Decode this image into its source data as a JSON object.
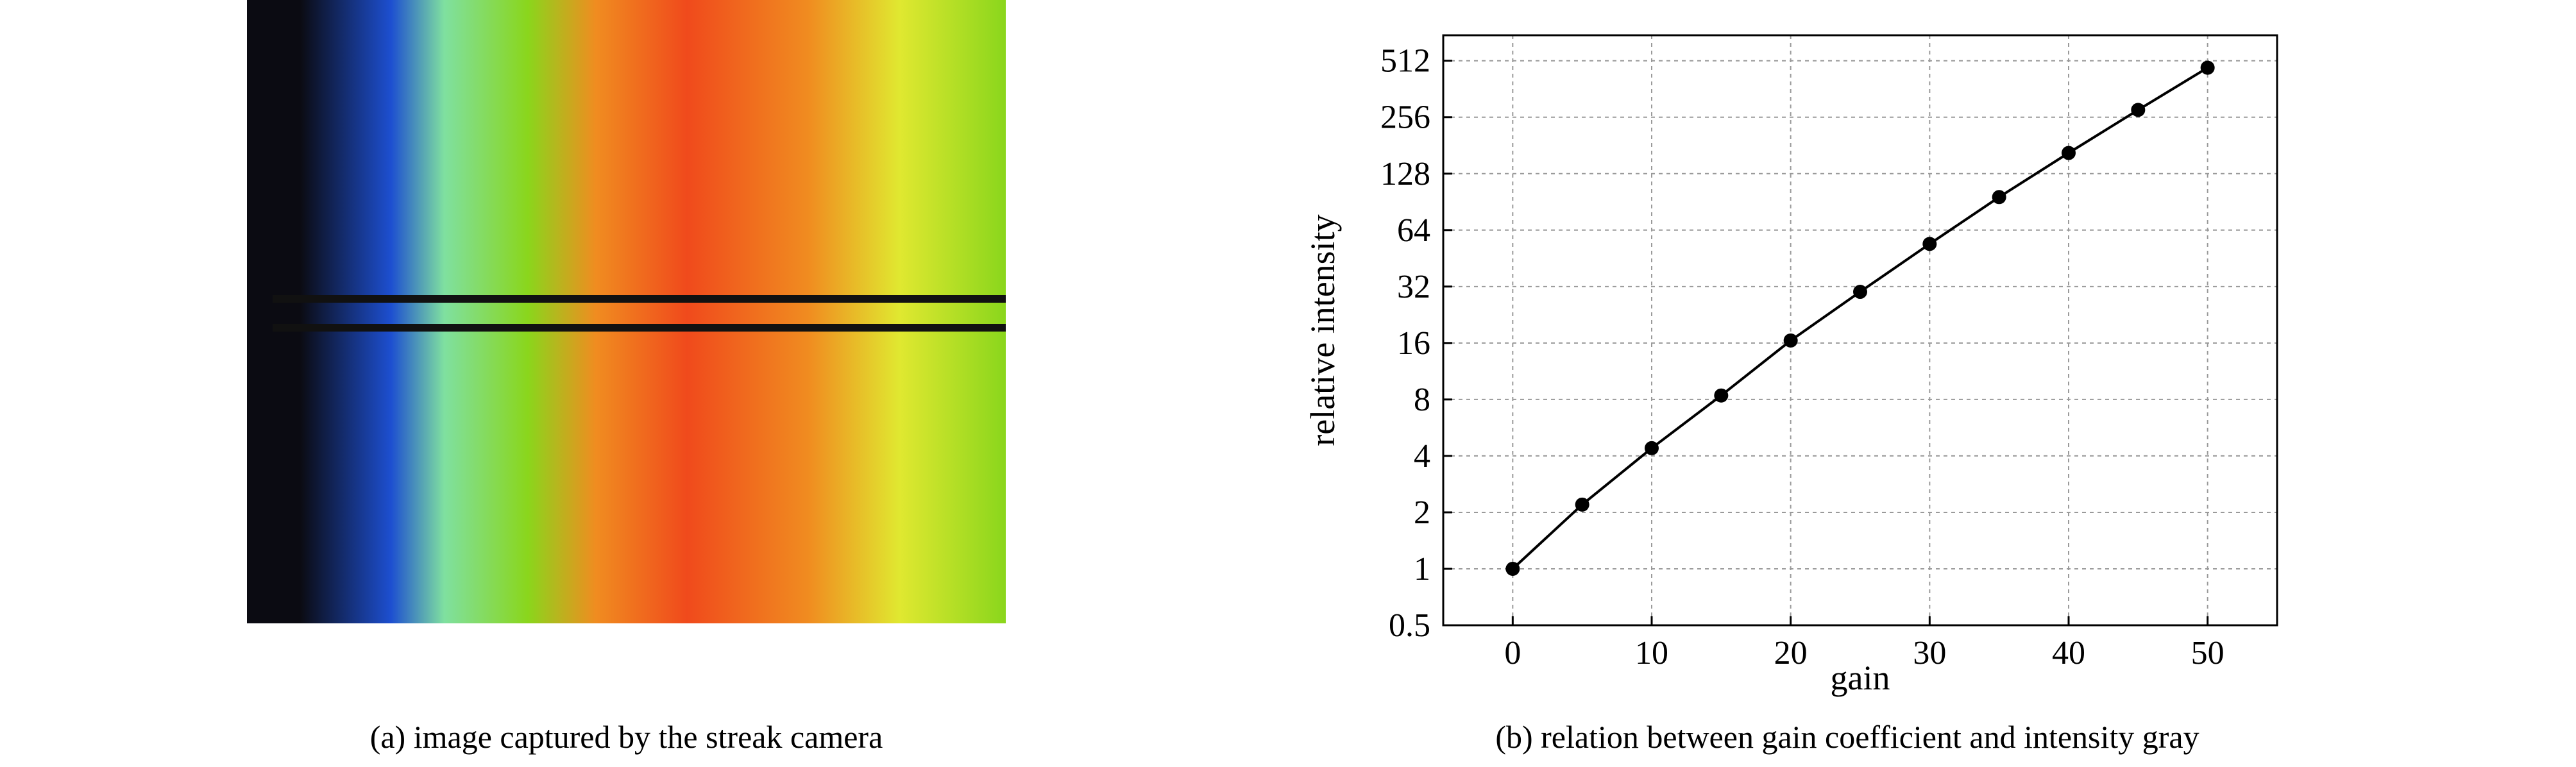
{
  "captions": {
    "a": "(a) image captured by the streak camera",
    "b": "(b) relation between gain coefficient and intensity gray"
  },
  "image_a": {
    "colormap": [
      "#0b0b12",
      "#1d4fd0",
      "#7fe0a0",
      "#8ad61c",
      "#e0e830",
      "#f08c20",
      "#f04a1c"
    ],
    "marker_line_color": "#111111"
  },
  "chart_data": {
    "type": "scatter",
    "xlabel": "gain",
    "ylabel": "relative intensity",
    "x_ticks": [
      0,
      10,
      20,
      30,
      40,
      50
    ],
    "y_ticks": [
      0.5,
      1,
      2,
      4,
      8,
      16,
      32,
      64,
      128,
      256,
      512
    ],
    "y_scale": "log2",
    "xlim": [
      -5,
      55
    ],
    "ylim": [
      0.5,
      700
    ],
    "grid": true,
    "series": [
      {
        "x": [
          0,
          5,
          10,
          15,
          20,
          25,
          30,
          35,
          40,
          45,
          50
        ],
        "y": [
          1,
          2.2,
          4.4,
          8.4,
          16.5,
          30,
          54,
          96,
          165,
          280,
          470
        ],
        "color": "#000000"
      }
    ]
  }
}
